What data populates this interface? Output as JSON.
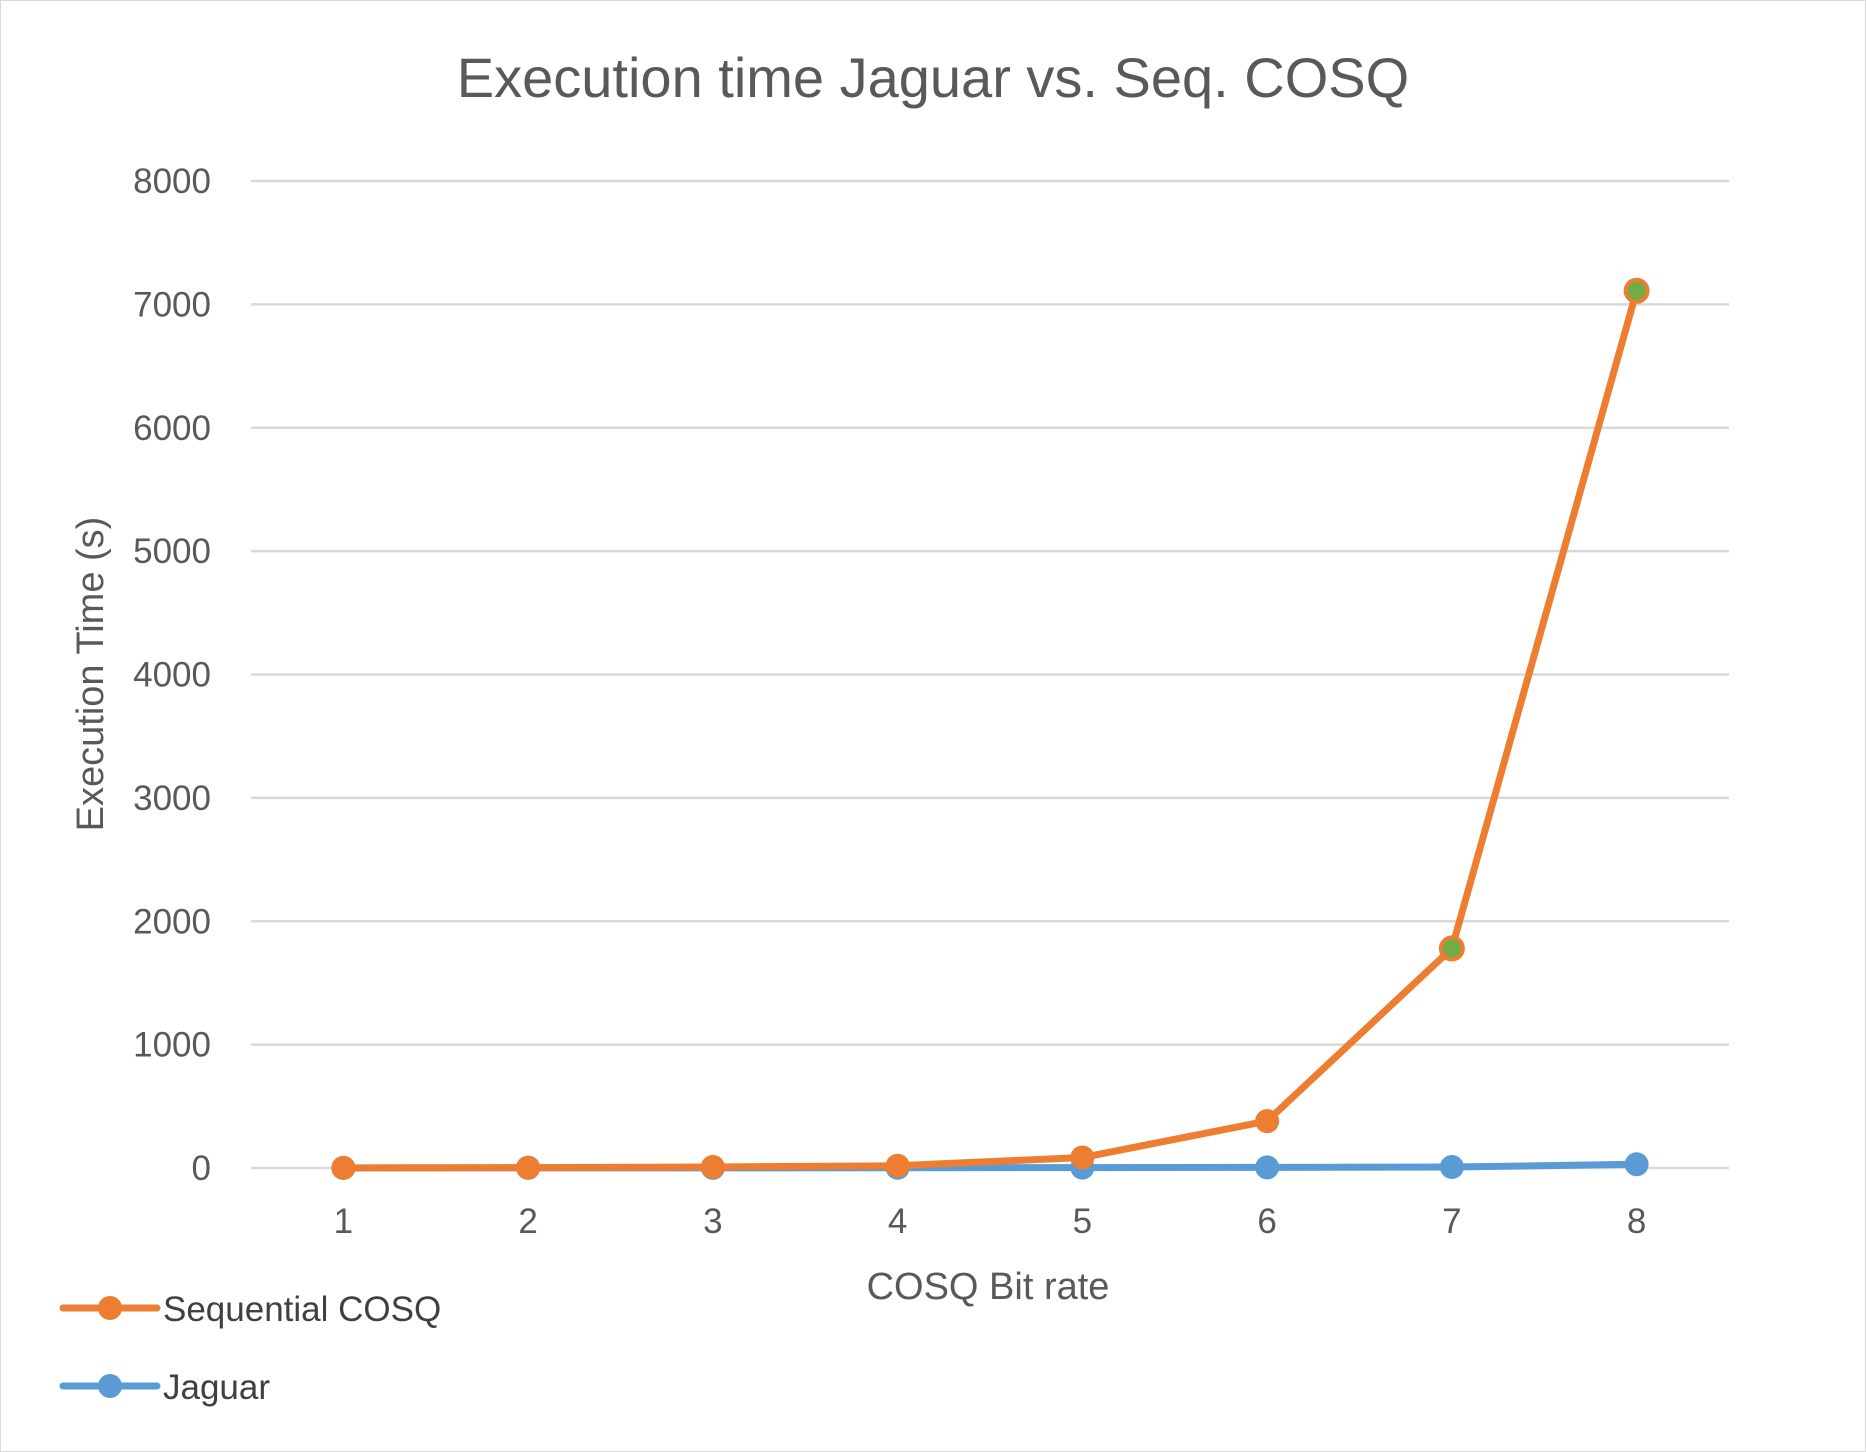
{
  "chart_data": {
    "type": "line",
    "title": "Execution time Jaguar vs. Seq. COSQ",
    "xlabel": "COSQ Bit rate",
    "ylabel": "Execution Time (s)",
    "categories": [
      "1",
      "2",
      "3",
      "4",
      "5",
      "6",
      "7",
      "8"
    ],
    "ylim": [
      0,
      8000
    ],
    "yticks": [
      "0",
      "1000",
      "2000",
      "3000",
      "4000",
      "5000",
      "6000",
      "7000",
      "8000"
    ],
    "grid": true,
    "legend_position": "bottom-left",
    "series": [
      {
        "name": "Sequential COSQ",
        "color": "#ed7d31",
        "values": [
          1,
          3,
          8,
          18,
          85,
          380,
          1780,
          7110
        ],
        "highlight_points": [
          6,
          7
        ],
        "highlight_color": "#70ad47"
      },
      {
        "name": "Jaguar",
        "color": "#5b9bd5",
        "values": [
          0.5,
          0.8,
          1.2,
          2,
          3,
          5,
          8,
          30
        ]
      }
    ]
  }
}
